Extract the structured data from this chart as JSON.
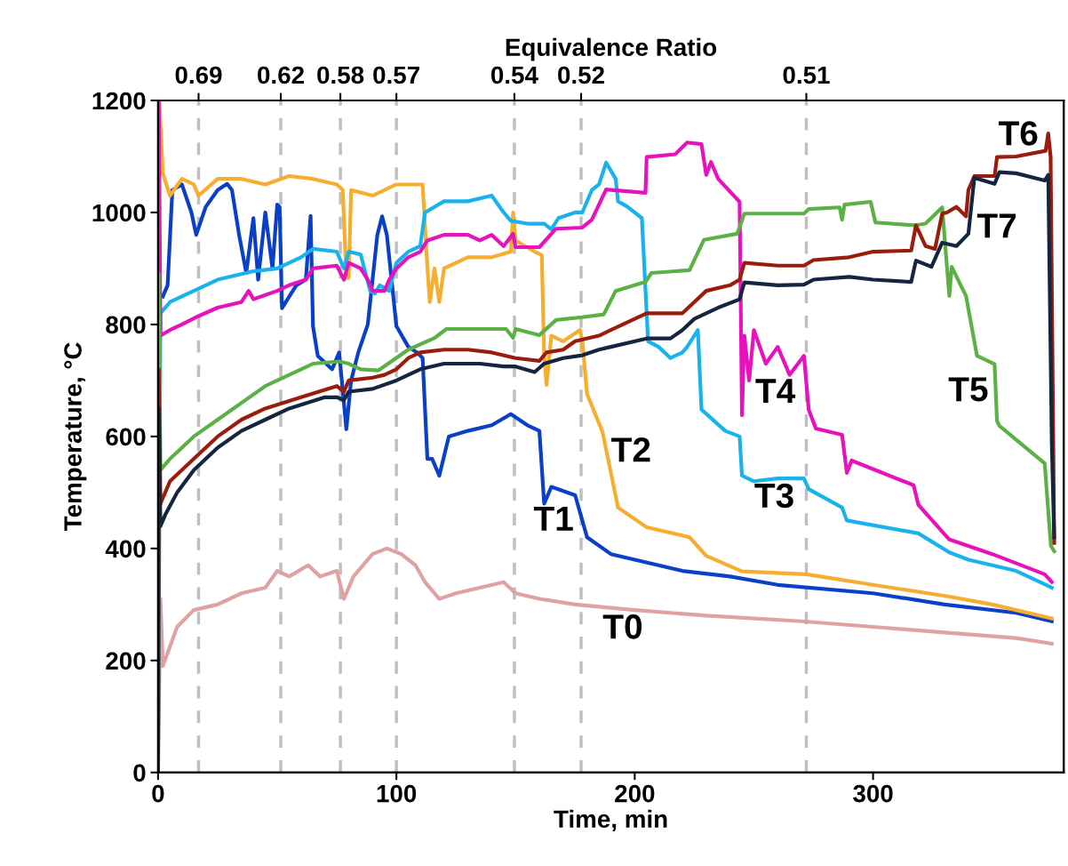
{
  "chart_data": {
    "type": "line",
    "xlabel": "Time, min",
    "ylabel": "Temperature, °C",
    "x2label": "Equivalence Ratio",
    "xlim": [
      0,
      380
    ],
    "xticks": [
      0,
      100,
      200,
      300
    ],
    "ylim": [
      0,
      1200
    ],
    "yticks": [
      0,
      200,
      400,
      600,
      800,
      1000,
      1200
    ],
    "grid": false,
    "legend": false,
    "marker": "none",
    "line_style": "solid",
    "ref_lines": [
      {
        "axis": "x",
        "value": 17,
        "color": "#bfbfbf",
        "line_style": "dashed"
      },
      {
        "axis": "x",
        "value": 51.5,
        "color": "#bfbfbf",
        "line_style": "dashed"
      },
      {
        "axis": "x",
        "value": 76.5,
        "color": "#bfbfbf",
        "line_style": "dashed"
      },
      {
        "axis": "x",
        "value": 100,
        "color": "#bfbfbf",
        "line_style": "dashed"
      },
      {
        "axis": "x",
        "value": 149.5,
        "color": "#bfbfbf",
        "line_style": "dashed"
      },
      {
        "axis": "x",
        "value": 177.5,
        "color": "#bfbfbf",
        "line_style": "dashed"
      },
      {
        "axis": "x",
        "value": 272,
        "color": "#bfbfbf",
        "line_style": "dashed"
      }
    ],
    "annotations": [
      {
        "text": "0.69",
        "x": 17
      },
      {
        "text": "0.62",
        "x": 51.5
      },
      {
        "text": "0.58",
        "x": 76.5
      },
      {
        "text": "0.57",
        "x": 100
      },
      {
        "text": "0.54",
        "x": 149.5
      },
      {
        "text": "0.52",
        "x": 177.5
      },
      {
        "text": "0.51",
        "x": 272
      }
    ],
    "series": [
      {
        "name": "T0",
        "color": "#dea2a2",
        "x": [
          0,
          1,
          2,
          8,
          15,
          25,
          35,
          45,
          50,
          55,
          63,
          68,
          75,
          78,
          82,
          90,
          96,
          102,
          108,
          112,
          118,
          125,
          135,
          145,
          150,
          160,
          175,
          200,
          230,
          270,
          300,
          330,
          360,
          375
        ],
        "values": [
          0,
          310,
          190,
          260,
          290,
          300,
          320,
          330,
          360,
          350,
          370,
          350,
          360,
          310,
          350,
          390,
          400,
          390,
          370,
          340,
          310,
          320,
          330,
          340,
          320,
          310,
          300,
          290,
          280,
          270,
          260,
          250,
          240,
          230
        ]
      },
      {
        "name": "T1",
        "color": "#0a3fc8",
        "x": [
          2,
          4,
          6,
          10,
          14,
          16,
          20,
          25,
          29,
          31,
          34,
          37,
          40,
          42,
          45,
          48,
          50,
          51,
          52,
          58,
          62,
          64,
          65,
          67,
          73,
          76,
          79,
          81,
          84,
          88,
          92,
          94,
          96,
          100,
          105,
          109,
          111,
          113,
          115,
          118,
          122,
          130,
          140,
          148,
          155,
          160,
          162,
          165,
          175,
          180,
          190,
          200,
          220,
          240,
          260,
          300,
          330,
          360,
          375
        ],
        "values": [
          850,
          870,
          1040,
          1050,
          1000,
          960,
          1010,
          1040,
          1051,
          1040,
          960,
          892,
          990,
          880,
          1000,
          900,
          1014,
          1010,
          829,
          870,
          880,
          994,
          797,
          744,
          720,
          750,
          613,
          700,
          750,
          800,
          960,
          993,
          960,
          797,
          760,
          749,
          740,
          560,
          560,
          530,
          600,
          610,
          620,
          640,
          620,
          610,
          480,
          510,
          495,
          420,
          390,
          380,
          360,
          350,
          335,
          320,
          300,
          285,
          270
        ]
      },
      {
        "name": "T2",
        "color": "#f5ae2f",
        "x": [
          0,
          0.5,
          2,
          5,
          10,
          15,
          17,
          25,
          35,
          45,
          55,
          65,
          75,
          77.5,
          79,
          80,
          81,
          90,
          100,
          111,
          113,
          114,
          116,
          118,
          120,
          130,
          140,
          148,
          149,
          150,
          158,
          161,
          162,
          163,
          165,
          170,
          177,
          178,
          180,
          186.5,
          193,
          205,
          223,
          230,
          245,
          272,
          300,
          332,
          350,
          375
        ],
        "values": [
          0,
          1200,
          1070,
          1030,
          1060,
          1050,
          1030,
          1060,
          1060,
          1050,
          1065,
          1060,
          1050,
          1040,
          883,
          883,
          1040,
          1030,
          1050,
          1050,
          903,
          840,
          900,
          840,
          900,
          920,
          920,
          930,
          1000,
          950,
          930,
          924,
          744,
          692,
          780,
          770,
          790,
          771,
          676,
          608,
          473,
          438,
          420,
          387,
          359,
          354,
          335,
          314,
          300,
          275
        ]
      },
      {
        "name": "T3",
        "color": "#19b2ec",
        "x": [
          0,
          1,
          5,
          15,
          25,
          40,
          50,
          60,
          65,
          75,
          78,
          80,
          85,
          89,
          91,
          93,
          97,
          100,
          105,
          110,
          112,
          120,
          130,
          140,
          145,
          148,
          155,
          162,
          165,
          168,
          175,
          178,
          182,
          185,
          188,
          192,
          193,
          197,
          203,
          205.6,
          210,
          215,
          220,
          222,
          226.5,
          228,
          238,
          244,
          245,
          250,
          260,
          271,
          273,
          287,
          289,
          319,
          332,
          340,
          360,
          372,
          375
        ],
        "values": [
          0,
          820,
          840,
          860,
          880,
          895,
          900,
          920,
          935,
          930,
          900,
          930,
          925,
          860,
          855,
          870,
          860,
          910,
          930,
          940,
          1000,
          1020,
          1020,
          1030,
          1000,
          985,
          980,
          980,
          970,
          990,
          1000,
          1000,
          1040,
          1050,
          1089,
          1060,
          1020,
          1010,
          990,
          770,
          760,
          740,
          750,
          760,
          790,
          648,
          610,
          600,
          530,
          520,
          525,
          525,
          506,
          473,
          450,
          427,
          393,
          380,
          360,
          336,
          330
        ]
      },
      {
        "name": "T4",
        "color": "#e612bb",
        "x": [
          0,
          0.3,
          1,
          5,
          10,
          17,
          25,
          35,
          38,
          40,
          50,
          55,
          62,
          65,
          75,
          78,
          80,
          85,
          88,
          90,
          95,
          97,
          100,
          105,
          110,
          113,
          120,
          130,
          135,
          140,
          145,
          149,
          150,
          160,
          167,
          178,
          182,
          188,
          204.5,
          205,
          217,
          222,
          228,
          230,
          232,
          235,
          244,
          245,
          246,
          248,
          250,
          255,
          260,
          265,
          271,
          273,
          276,
          287,
          289,
          291,
          317,
          319,
          332,
          350,
          372,
          375
        ],
        "values": [
          0,
          1200,
          780,
          790,
          800,
          815,
          830,
          840,
          860,
          845,
          860,
          870,
          880,
          900,
          905,
          880,
          910,
          900,
          880,
          860,
          860,
          880,
          900,
          920,
          930,
          950,
          960,
          960,
          950,
          960,
          940,
          962,
          938,
          938,
          971,
          973,
          987,
          1041,
          1035,
          1099,
          1104,
          1125,
          1122,
          1067,
          1090,
          1060,
          1019,
          638,
          780,
          700,
          790,
          730,
          760,
          710,
          744,
          648,
          614,
          603,
          535,
          557,
          513,
          478,
          416,
          390,
          354,
          340
        ]
      },
      {
        "name": "T5",
        "color": "#5cb146",
        "x": [
          0,
          0.3,
          1,
          5,
          15,
          25,
          35,
          45,
          55,
          65,
          76,
          80,
          85,
          92.5,
          105,
          116,
          121,
          146,
          149,
          150,
          160,
          167,
          178,
          187,
          192,
          204.5,
          207,
          223,
          229,
          243,
          246,
          271,
          273,
          286,
          287,
          288,
          299,
          301,
          317.5,
          322,
          329,
          332,
          333,
          339,
          343.6,
          351,
          352,
          353,
          372,
          374.6,
          376
        ],
        "values": [
          0,
          890,
          540,
          560,
          600,
          630,
          660,
          690,
          710,
          730,
          734,
          730,
          720,
          718,
          755,
          776,
          792,
          792,
          776,
          792,
          781,
          808,
          813,
          818,
          860,
          876,
          892,
          897,
          951,
          962,
          998,
          998,
          1006,
          1009,
          987,
          1014,
          1019,
          982,
          977,
          980,
          1009,
          851,
          903,
          851,
          744,
          729,
          628,
          619,
          552,
          405,
          395
        ]
      },
      {
        "name": "T6",
        "color": "#9a1c0c",
        "x": [
          0,
          0.3,
          1,
          5,
          15,
          25,
          35,
          45,
          60,
          75,
          78,
          80,
          90,
          95,
          100,
          105,
          110,
          120,
          130,
          140,
          150,
          160,
          163,
          170,
          175,
          185,
          190,
          195,
          200,
          205,
          215,
          220,
          225,
          230,
          240,
          244,
          246,
          260,
          271,
          275,
          290,
          300,
          316,
          318,
          322,
          326,
          329,
          331,
          335,
          339,
          340,
          342.5,
          351,
          352,
          360,
          372.4,
          373.5,
          374.5,
          376
        ],
        "values": [
          0,
          720,
          480,
          520,
          560,
          600,
          630,
          650,
          670,
          690,
          680,
          700,
          705,
          710,
          720,
          740,
          750,
          755,
          755,
          750,
          740,
          735,
          750,
          755,
          770,
          780,
          790,
          800,
          810,
          820,
          820,
          820,
          840,
          860,
          870,
          880,
          910,
          905,
          905,
          915,
          920,
          930,
          932,
          977,
          940,
          935,
          998,
          1000,
          1010,
          993,
          1040,
          1065,
          1065,
          1099,
          1100,
          1110,
          1141,
          1100,
          410
        ]
      },
      {
        "name": "T7",
        "color": "#14263f",
        "x": [
          0,
          0.3,
          1,
          3,
          8,
          15,
          25,
          35,
          45,
          55,
          70,
          75,
          78,
          80,
          90,
          100,
          110,
          120,
          135,
          145,
          150,
          158,
          162,
          170,
          178,
          185,
          190,
          205,
          215,
          220,
          225,
          235,
          244,
          246,
          260,
          271,
          275,
          290,
          300,
          316,
          318,
          324.5,
          329,
          335,
          340,
          342.5,
          351,
          353,
          360,
          372,
          373.5,
          375,
          376
        ],
        "values": [
          0,
          650,
          440,
          460,
          500,
          540,
          580,
          610,
          630,
          650,
          670,
          670,
          665,
          680,
          685,
          700,
          720,
          730,
          730,
          725,
          725,
          715,
          730,
          740,
          745,
          755,
          760,
          775,
          775,
          790,
          810,
          830,
          845,
          875,
          870,
          871,
          880,
          885,
          880,
          876,
          914,
          903,
          946,
          940,
          962,
          1062,
          1051,
          1072,
          1070,
          1057,
          1067,
          586,
          420
        ]
      }
    ]
  }
}
